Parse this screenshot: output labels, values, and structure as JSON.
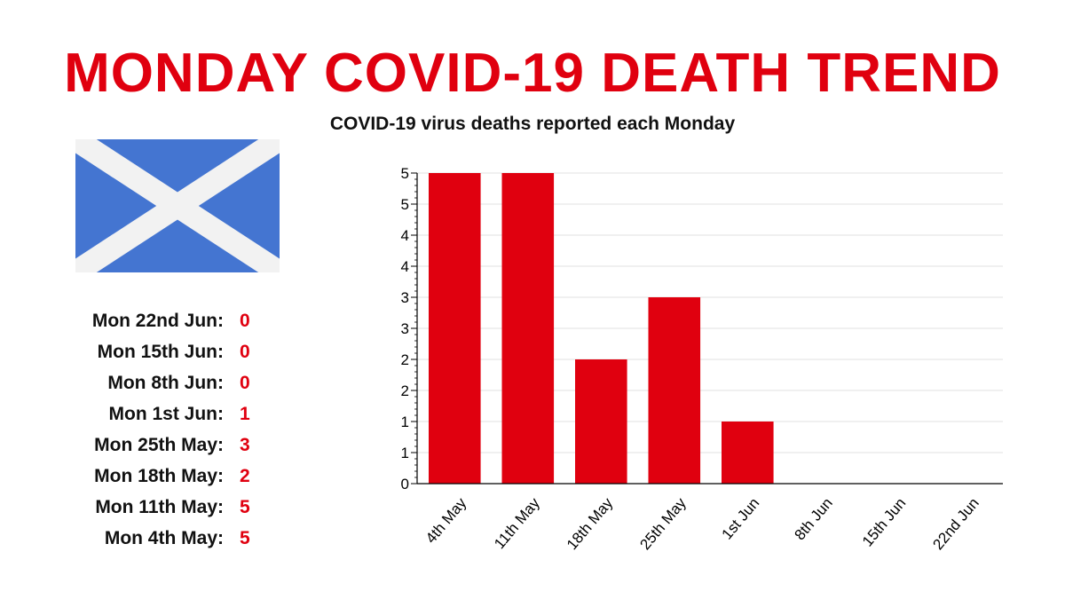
{
  "colors": {
    "accent": "#e0000f",
    "flag_blue": "#4475d1",
    "flag_white": "#f2f2f2",
    "grid": "#e2e2e2",
    "axis": "#000000"
  },
  "header": {
    "title": "MONDAY COVID-19 DEATH TREND",
    "subtitle": "COVID-19 virus deaths reported each Monday"
  },
  "flag": {
    "icon": "scotland-saltire-flag-icon"
  },
  "summary": [
    {
      "label": "Mon 22nd Jun:",
      "value": "0"
    },
    {
      "label": "Mon 15th Jun:",
      "value": "0"
    },
    {
      "label": "Mon 8th Jun:",
      "value": "0"
    },
    {
      "label": "Mon 1st Jun:",
      "value": "1"
    },
    {
      "label": "Mon 25th May:",
      "value": "3"
    },
    {
      "label": "Mon 18th May:",
      "value": "2"
    },
    {
      "label": "Mon 11th May:",
      "value": "5"
    },
    {
      "label": "Mon 4th May:",
      "value": "5"
    }
  ],
  "chart_data": {
    "type": "bar",
    "categories": [
      "4th May",
      "11th May",
      "18th May",
      "25th May",
      "1st Jun",
      "8th Jun",
      "15th Jun",
      "22nd Jun"
    ],
    "values": [
      5,
      5,
      2,
      3,
      1,
      0,
      0,
      0
    ],
    "ylim": [
      0,
      5
    ],
    "y_ticks": [
      0,
      0.5,
      1,
      1.5,
      2,
      2.5,
      3,
      3.5,
      4,
      4.5,
      5
    ],
    "y_tick_labels": [
      "0",
      "1",
      "1",
      "2",
      "2",
      "3",
      "3",
      "4",
      "4",
      "5",
      "5"
    ],
    "grid": true,
    "legend": "none"
  }
}
